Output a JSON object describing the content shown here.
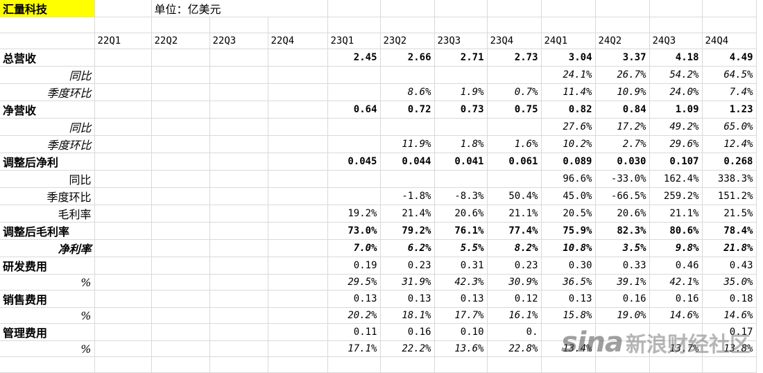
{
  "company": "汇量科技",
  "unit": "单位：亿美元",
  "quarters": [
    "22Q1",
    "22Q2",
    "22Q3",
    "22Q4",
    "23Q1",
    "23Q2",
    "23Q3",
    "23Q4",
    "24Q1",
    "24Q2",
    "24Q3",
    "24Q4"
  ],
  "rows": [
    {
      "label": "总营收",
      "values": [
        "",
        "",
        "",
        "",
        "2.45",
        "2.66",
        "2.71",
        "2.73",
        "3.04",
        "3.37",
        "4.18",
        "4.49"
      ]
    },
    {
      "label": "同比",
      "values": [
        "",
        "",
        "",
        "",
        "",
        "",
        "",
        "",
        "24.1%",
        "26.7%",
        "54.2%",
        "64.5%"
      ]
    },
    {
      "label": "季度环比",
      "values": [
        "",
        "",
        "",
        "",
        "",
        "8.6%",
        "1.9%",
        "0.7%",
        "11.4%",
        "10.9%",
        "24.0%",
        "7.4%"
      ]
    },
    {
      "label": "净营收",
      "values": [
        "",
        "",
        "",
        "",
        "0.64",
        "0.72",
        "0.73",
        "0.75",
        "0.82",
        "0.84",
        "1.09",
        "1.23"
      ]
    },
    {
      "label": "同比",
      "values": [
        "",
        "",
        "",
        "",
        "",
        "",
        "",
        "",
        "27.6%",
        "17.2%",
        "49.2%",
        "65.0%"
      ]
    },
    {
      "label": "季度环比",
      "values": [
        "",
        "",
        "",
        "",
        "",
        "11.9%",
        "1.8%",
        "1.6%",
        "10.2%",
        "2.7%",
        "29.6%",
        "12.4%"
      ]
    },
    {
      "label": "调整后净利",
      "values": [
        "",
        "",
        "",
        "",
        "0.045",
        "0.044",
        "0.041",
        "0.061",
        "0.089",
        "0.030",
        "0.107",
        "0.268"
      ]
    },
    {
      "label": "同比",
      "values": [
        "",
        "",
        "",
        "",
        "",
        "",
        "",
        "",
        "96.6%",
        "-33.0%",
        "162.4%",
        "338.3%"
      ]
    },
    {
      "label": "季度环比",
      "values": [
        "",
        "",
        "",
        "",
        "",
        "-1.8%",
        "-8.3%",
        "50.4%",
        "45.0%",
        "-66.5%",
        "259.2%",
        "151.2%"
      ]
    },
    {
      "label": "毛利率",
      "values": [
        "",
        "",
        "",
        "",
        "19.2%",
        "21.4%",
        "20.6%",
        "21.1%",
        "20.5%",
        "20.6%",
        "21.1%",
        "21.5%"
      ]
    },
    {
      "label": "调整后毛利率",
      "values": [
        "",
        "",
        "",
        "",
        "73.0%",
        "79.2%",
        "76.1%",
        "77.4%",
        "75.9%",
        "82.3%",
        "80.6%",
        "78.4%"
      ]
    },
    {
      "label": "净利率",
      "values": [
        "",
        "",
        "",
        "",
        "7.0%",
        "6.2%",
        "5.5%",
        "8.2%",
        "10.8%",
        "3.5%",
        "9.8%",
        "21.8%"
      ]
    },
    {
      "label": "研发费用",
      "values": [
        "",
        "",
        "",
        "",
        "0.19",
        "0.23",
        "0.31",
        "0.23",
        "0.30",
        "0.33",
        "0.46",
        "0.43"
      ]
    },
    {
      "label": "%",
      "values": [
        "",
        "",
        "",
        "",
        "29.5%",
        "31.9%",
        "42.3%",
        "30.9%",
        "36.5%",
        "39.1%",
        "42.1%",
        "35.0%"
      ]
    },
    {
      "label": "销售费用",
      "values": [
        "",
        "",
        "",
        "",
        "0.13",
        "0.13",
        "0.13",
        "0.12",
        "0.13",
        "0.16",
        "0.16",
        "0.18"
      ]
    },
    {
      "label": "%",
      "values": [
        "",
        "",
        "",
        "",
        "20.2%",
        "18.1%",
        "17.7%",
        "16.1%",
        "15.8%",
        "19.0%",
        "14.6%",
        "14.6%"
      ]
    },
    {
      "label": "管理费用",
      "values": [
        "",
        "",
        "",
        "",
        "0.11",
        "0.16",
        "0.10",
        "0.",
        "",
        "",
        "",
        "0.17"
      ]
    },
    {
      "label": "%",
      "values": [
        "",
        "",
        "",
        "",
        "17.1%",
        "22.2%",
        "13.6%",
        "22.8%",
        "13.4%",
        "",
        "13.7%",
        "13.8%"
      ]
    }
  ],
  "watermark": {
    "logo": "sina",
    "text": "新浪财经社区"
  },
  "colors": {
    "highlight": "#ffff00",
    "red": "#ff0000",
    "green": "#00b050",
    "grid": "#d9d9d9"
  }
}
